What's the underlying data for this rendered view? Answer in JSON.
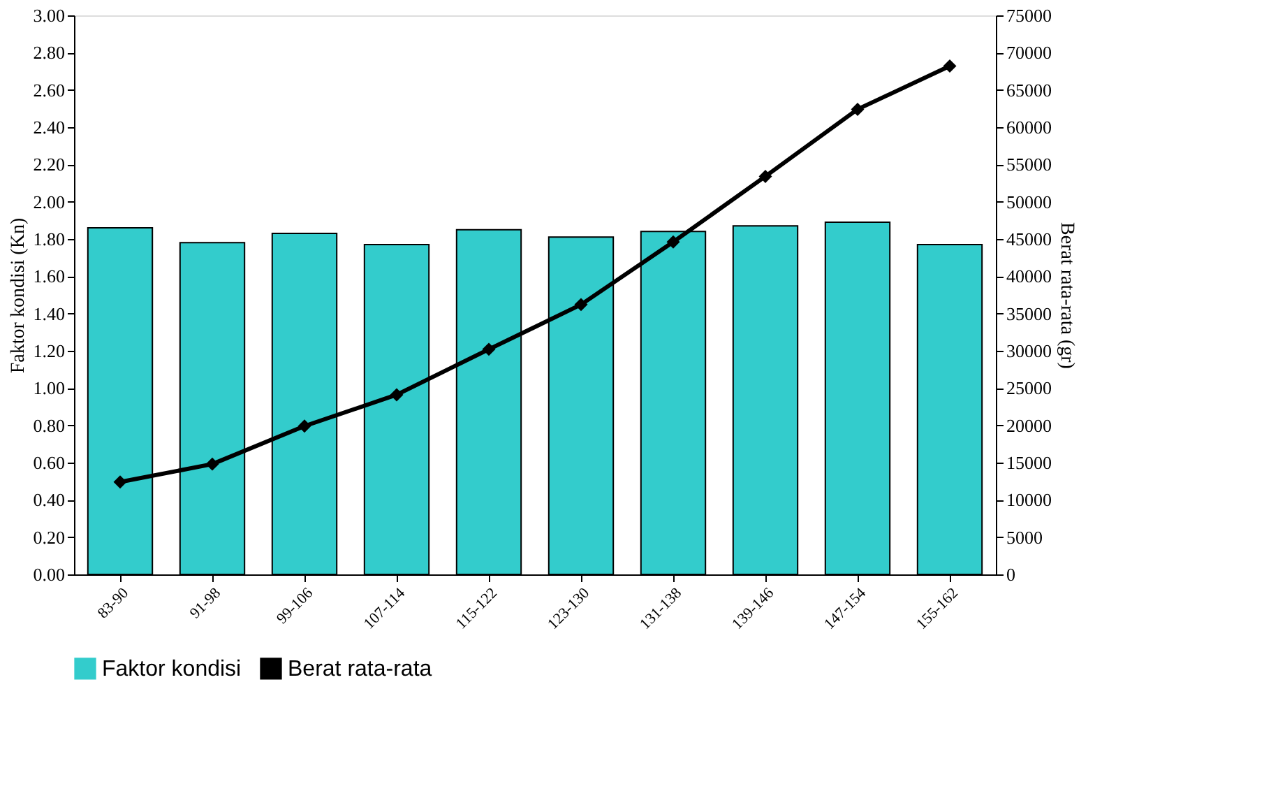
{
  "chart_data": {
    "type": "bar",
    "ylabel": "Faktor kondisi (Kn)",
    "y2label": "Berat rata-rata (gr)",
    "categories": [
      "83-90",
      "91-98",
      "99-106",
      "107-114",
      "115-122",
      "123-130",
      "131-138",
      "139-146",
      "147-154",
      "155-162"
    ],
    "series": [
      {
        "name": "Faktor kondisi",
        "color": "#33cccc",
        "values": [
          1.86,
          1.78,
          1.83,
          1.77,
          1.85,
          1.81,
          1.84,
          1.87,
          1.89,
          1.77
        ]
      },
      {
        "name": "Berat rata-rata",
        "type": "line",
        "axis": "y2",
        "color": "#000000",
        "marker": "diamond",
        "values": [
          12400,
          14800,
          19900,
          24100,
          30200,
          36200,
          44600,
          53400,
          62400,
          68200
        ]
      }
    ],
    "ylim": [
      0,
      3
    ],
    "yticks": [
      {
        "value": 0,
        "label": "0.00"
      },
      {
        "value": 0.2,
        "label": "0.20"
      },
      {
        "value": 0.4,
        "label": "0.40"
      },
      {
        "value": 0.6,
        "label": "0.60"
      },
      {
        "value": 0.8,
        "label": "0.80"
      },
      {
        "value": 1.0,
        "label": "1.00"
      },
      {
        "value": 1.2,
        "label": "1.20"
      },
      {
        "value": 1.4,
        "label": "1.40"
      },
      {
        "value": 1.6,
        "label": "1.60"
      },
      {
        "value": 1.8,
        "label": "1.80"
      },
      {
        "value": 2.0,
        "label": "2.00"
      },
      {
        "value": 2.2,
        "label": "2.20"
      },
      {
        "value": 2.4,
        "label": "2.40"
      },
      {
        "value": 2.6,
        "label": "2.60"
      },
      {
        "value": 2.8,
        "label": "2.80"
      },
      {
        "value": 3.0,
        "label": "3.00"
      }
    ],
    "y2lim": [
      0,
      75000
    ],
    "y2ticks": [
      0,
      5000,
      10000,
      15000,
      20000,
      25000,
      30000,
      35000,
      40000,
      45000,
      50000,
      55000,
      60000,
      65000,
      70000,
      75000
    ],
    "legend": "bottom",
    "grid": false
  }
}
